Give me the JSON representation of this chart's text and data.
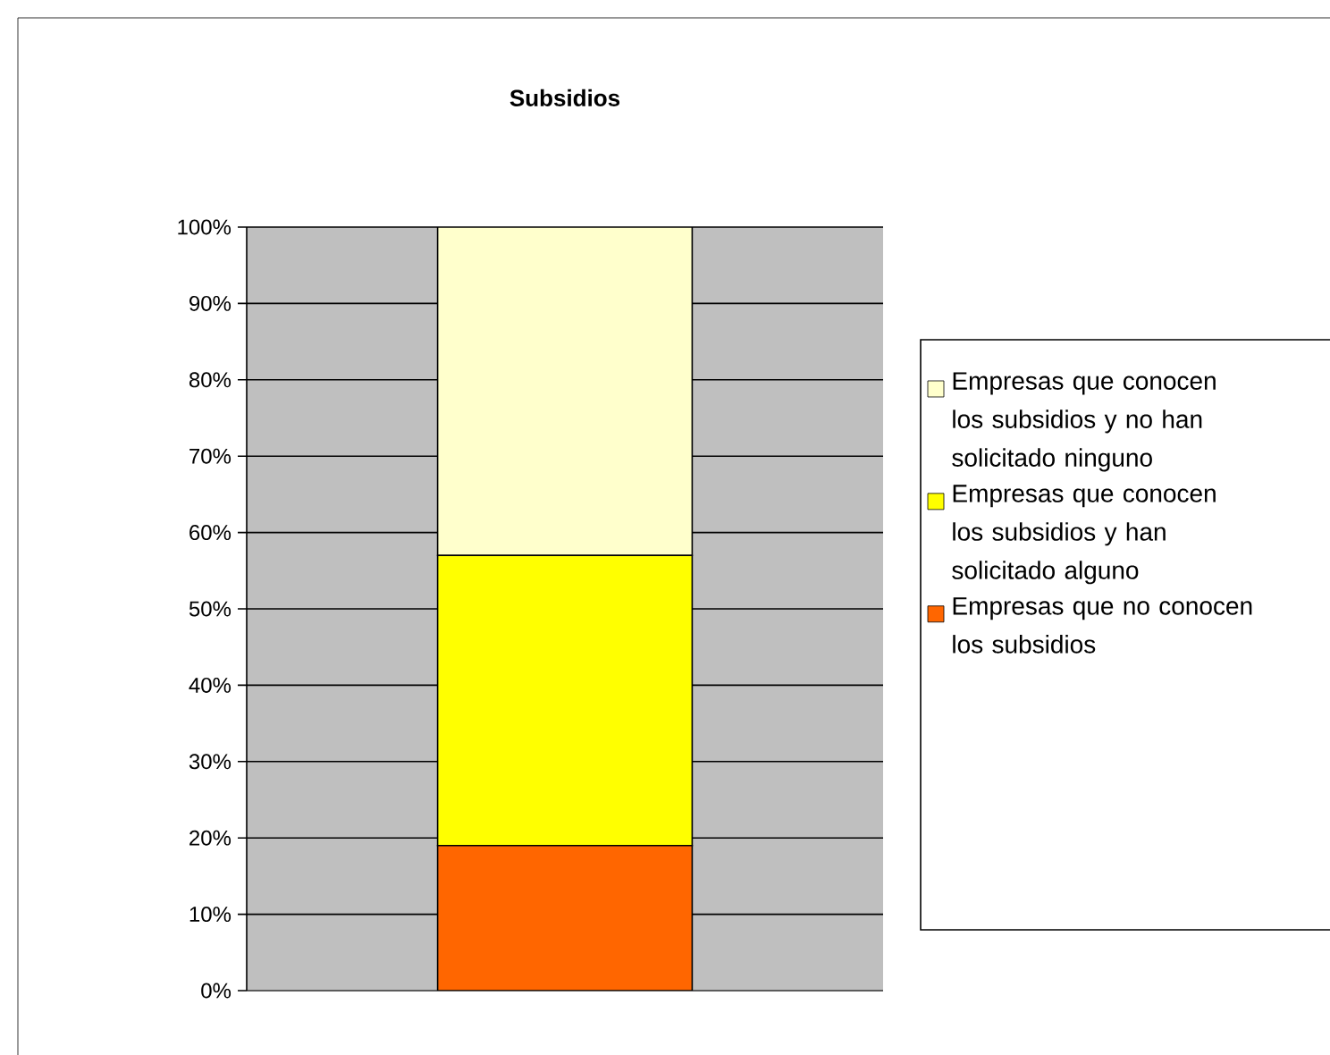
{
  "chart_data": {
    "type": "bar",
    "title": "Subsidios",
    "stacked": true,
    "categories": [
      null
    ],
    "series": [
      {
        "name": "Empresas que no conocen los subsidios",
        "color": "#ff6600",
        "values": [
          19
        ]
      },
      {
        "name": "Empresas que conocen los subsidios y han solicitado alguno",
        "color": "#ffff00",
        "values": [
          38
        ]
      },
      {
        "name": "Empresas que conocen los subsidios y no han solicitado ninguno",
        "color": "#ffffcc",
        "values": [
          43
        ]
      }
    ],
    "ylim": [
      0,
      100
    ],
    "yticks": [
      {
        "value": 0,
        "label": "0%"
      },
      {
        "value": 10,
        "label": "10%"
      },
      {
        "value": 20,
        "label": "20%"
      },
      {
        "value": 30,
        "label": "30%"
      },
      {
        "value": 40,
        "label": "40%"
      },
      {
        "value": 50,
        "label": "50%"
      },
      {
        "value": 60,
        "label": "60%"
      },
      {
        "value": 70,
        "label": "70%"
      },
      {
        "value": 80,
        "label": "80%"
      },
      {
        "value": 90,
        "label": "90%"
      },
      {
        "value": 100,
        "label": "100%"
      }
    ],
    "grid": "y",
    "legend": "right",
    "tick_labels": "y"
  }
}
